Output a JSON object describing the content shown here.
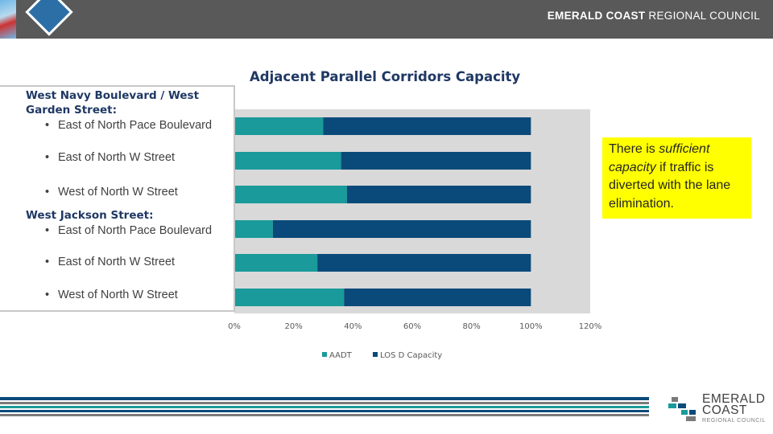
{
  "header": {
    "org_bold": "EMERALD COAST",
    "org_light": " REGIONAL COUNCIL"
  },
  "chart_data": {
    "type": "bar",
    "orientation": "horizontal",
    "stacked": true,
    "title": "Adjacent Parallel Corridors Capacity",
    "groups": [
      {
        "name": "West Navy Boulevard / West Garden Street:",
        "items": [
          "East of North Pace Boulevard",
          "East of North W Street",
          "West of North W Street"
        ]
      },
      {
        "name": "West Jackson Street:",
        "items": [
          "East of North Pace Boulevard",
          "East of North W Street",
          "West of North W Street"
        ]
      }
    ],
    "categories": [
      "West Navy Boulevard / West Garden Street: East of North Pace Boulevard",
      "West Navy Boulevard / West Garden Street: East of North W Street",
      "West Navy Boulevard / West Garden Street: West of North W Street",
      "West Jackson Street: East of North Pace Boulevard",
      "West Jackson Street: East of North W Street",
      "West Jackson Street: West of North W Street"
    ],
    "series": [
      {
        "name": "AADT",
        "color": "#1a9a9a",
        "values": [
          30,
          36,
          38,
          13,
          28,
          37
        ]
      },
      {
        "name": "LOS D Capacity",
        "color": "#0a4a7a",
        "values": [
          70,
          64,
          62,
          87,
          72,
          63
        ]
      }
    ],
    "xlim": [
      0,
      120
    ],
    "xticks": [
      "0%",
      "20%",
      "40%",
      "60%",
      "80%",
      "100%",
      "120%"
    ],
    "tick_values": [
      0,
      20,
      40,
      60,
      80,
      100,
      120
    ],
    "legend_position": "bottom",
    "plot_background": "#d9d9d9"
  },
  "bullet_glyph": "•",
  "note": {
    "prefix": "There is ",
    "emph": "sufficient capacity",
    "suffix": " if traffic is diverted with the lane elimination."
  },
  "footer": {
    "logo_line1": "EMERALD",
    "logo_line2": "COAST",
    "logo_sub": "REGIONAL COUNCIL"
  }
}
